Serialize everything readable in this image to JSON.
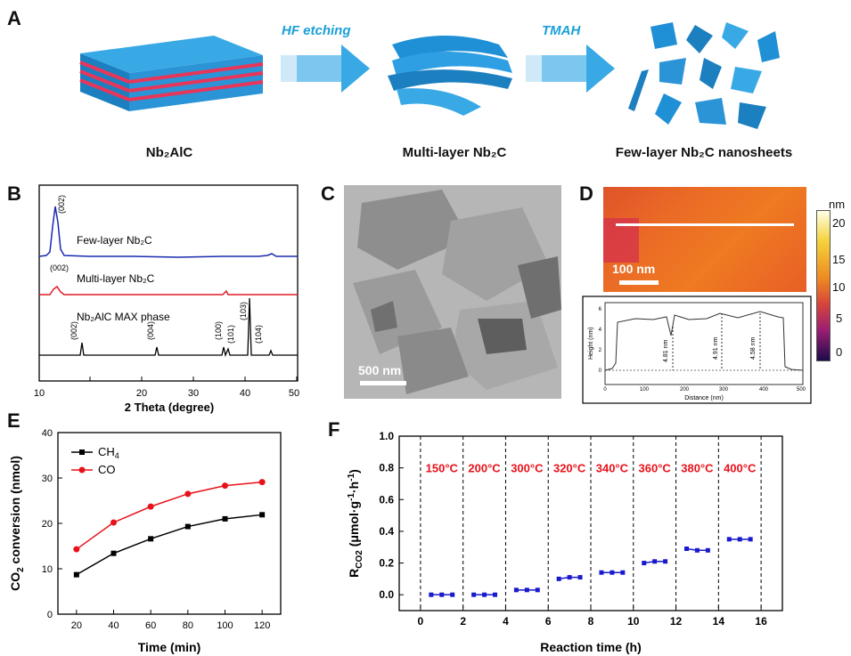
{
  "panel_labels": {
    "A": "A",
    "B": "B",
    "C": "C",
    "D": "D",
    "E": "E",
    "F": "F"
  },
  "panel_a": {
    "steps": [
      "HF etching",
      "TMAH"
    ],
    "captions": [
      "Nb₂AlC",
      "Multi-layer Nb₂C",
      "Few-layer Nb₂C nanosheets"
    ],
    "colors": {
      "blue": "#1f8fd6",
      "red": "#e8365a",
      "arrow": "#39a9e6"
    }
  },
  "panel_b": {
    "xlabel": "2 Theta (degree)",
    "xticks": [
      "10",
      "20",
      "30",
      "40",
      "50"
    ],
    "series_labels": [
      "Few-layer Nb₂C",
      "Multi-layer Nb₂C",
      "Nb₂AlC MAX phase"
    ],
    "peak_labels": [
      "(002)",
      "(002)",
      "(002)",
      "(004)",
      "(100)",
      "(101)",
      "(103)",
      "(104)"
    ]
  },
  "panel_c": {
    "scalebar": "500 nm"
  },
  "panel_d": {
    "scalebar": "100 nm",
    "colorbar_unit": "nm",
    "colorbar_ticks": [
      "20",
      "15",
      "10",
      "5",
      "0"
    ],
    "profile_ylabel": "Height (nm)",
    "profile_xlabel": "Distance (nm)",
    "profile_annotations": [
      "4.81 nm",
      "4.91 nm",
      "4.58 nm"
    ],
    "profile_xticks": [
      "0",
      "100",
      "200",
      "300",
      "400",
      "500"
    ],
    "profile_yticks": [
      "0",
      "2",
      "4",
      "6"
    ]
  },
  "chart_data": [
    {
      "type": "line",
      "id": "E",
      "title": "",
      "xlabel": "Time (min)",
      "ylabel": "CO2 conversion (nmol)",
      "x": [
        20,
        40,
        60,
        80,
        100,
        120
      ],
      "xticks": [
        "20",
        "40",
        "60",
        "80",
        "100",
        "120"
      ],
      "yticks": [
        "0",
        "10",
        "20",
        "30",
        "40"
      ],
      "xlim": [
        10,
        130
      ],
      "ylim": [
        0,
        40
      ],
      "series": [
        {
          "name": "CH4",
          "color": "#000000",
          "values": [
            8.7,
            13.4,
            16.6,
            19.3,
            21.0,
            21.9
          ]
        },
        {
          "name": "CO",
          "color": "#e8111a",
          "values": [
            14.3,
            20.2,
            23.7,
            26.5,
            28.3,
            29.1
          ]
        }
      ],
      "legend": [
        "CH4",
        "CO"
      ],
      "legend_position": "top-left"
    },
    {
      "type": "scatter",
      "id": "F",
      "title": "",
      "xlabel": "Reaction time (h)",
      "ylabel": "RCO2 (μmol·g-1·h-1)",
      "xlim": [
        -1,
        17
      ],
      "ylim": [
        -0.1,
        1.0
      ],
      "xticks": [
        "0",
        "2",
        "4",
        "6",
        "8",
        "10",
        "12",
        "14",
        "16"
      ],
      "yticks": [
        "0.0",
        "0.2",
        "0.4",
        "0.6",
        "0.8",
        "1.0"
      ],
      "segment_boundaries": [
        0,
        2,
        4,
        6,
        8,
        10,
        12,
        14,
        16
      ],
      "temperatures": [
        "150°C",
        "200°C",
        "300°C",
        "320°C",
        "340°C",
        "360°C",
        "380°C",
        "400°C"
      ],
      "series": [
        {
          "name": "RCO2",
          "color": "#1a1acc",
          "points": [
            [
              0.5,
              0.0
            ],
            [
              1.0,
              0.0
            ],
            [
              1.5,
              0.0
            ],
            [
              2.5,
              0.0
            ],
            [
              3.0,
              0.0
            ],
            [
              3.5,
              0.0
            ],
            [
              4.5,
              0.03
            ],
            [
              5.0,
              0.03
            ],
            [
              5.5,
              0.03
            ],
            [
              6.5,
              0.1
            ],
            [
              7.0,
              0.11
            ],
            [
              7.5,
              0.11
            ],
            [
              8.5,
              0.14
            ],
            [
              9.0,
              0.14
            ],
            [
              9.5,
              0.14
            ],
            [
              10.5,
              0.2
            ],
            [
              11.0,
              0.21
            ],
            [
              11.5,
              0.21
            ],
            [
              12.5,
              0.29
            ],
            [
              13.0,
              0.28
            ],
            [
              13.5,
              0.28
            ],
            [
              14.5,
              0.35
            ],
            [
              15.0,
              0.35
            ],
            [
              15.5,
              0.35
            ]
          ]
        }
      ]
    }
  ]
}
